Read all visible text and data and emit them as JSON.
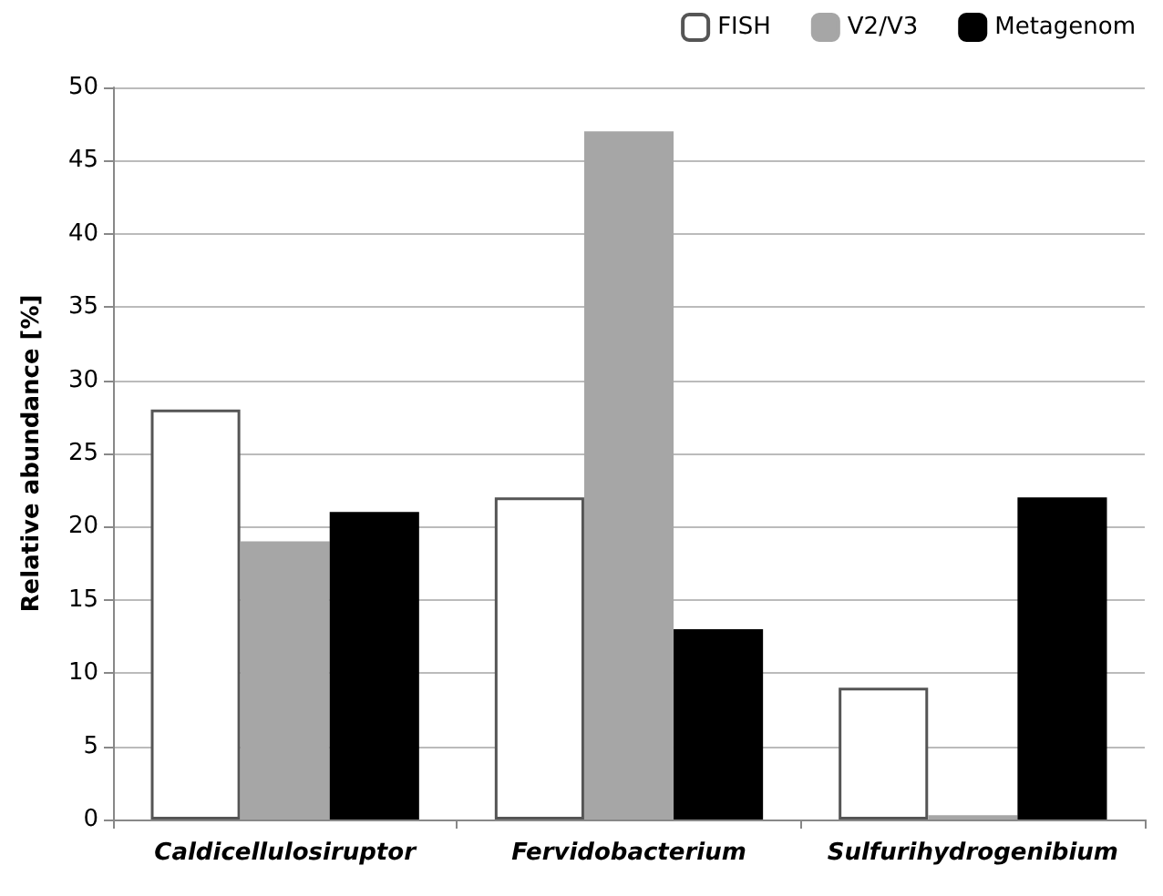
{
  "chart_data": {
    "type": "bar",
    "ylabel": "Relative abundance [%]",
    "categories": [
      "Caldicellulosiruptor",
      "Fervidobacterium",
      "Sulfurihydrogenibium"
    ],
    "series": [
      {
        "name": "FISH",
        "color": "#ffffff",
        "values": [
          28,
          22,
          9
        ]
      },
      {
        "name": "V2/V3",
        "color": "#a6a6a6",
        "values": [
          19,
          47,
          0.3
        ]
      },
      {
        "name": "Metagenom",
        "color": "#000000",
        "values": [
          21,
          13,
          22
        ]
      }
    ],
    "ylim": [
      0,
      50
    ],
    "yticks": [
      0,
      5,
      10,
      15,
      20,
      25,
      30,
      35,
      40,
      45,
      50
    ],
    "grid": "y",
    "legend": "top right"
  }
}
